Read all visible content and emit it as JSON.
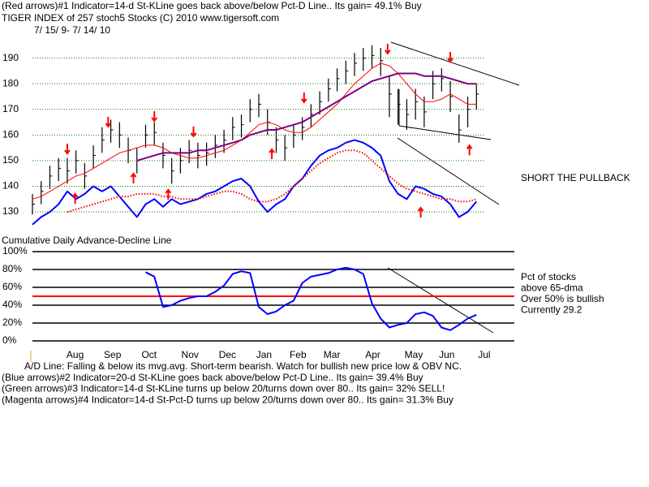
{
  "chart_data": [
    {
      "type": "ohlc",
      "title": "(Red arrows)#1 Indicator=14-d St-KLine goes back above/below Pct-D Line.. Its gain= 49.1% Buy",
      "subtitle": "TIGER INDEX of  257 stoch5 Stocks  (C) 2010  www.tigersoft.com",
      "date_range": "7/ 15/ 9- 7/ 14/ 10",
      "annotation": "SHORT THE PULLBACK",
      "xlim": [
        0,
        52
      ],
      "ylim": [
        124,
        200
      ],
      "yticks": [
        130,
        140,
        150,
        160,
        170,
        180,
        190
      ],
      "grid": true,
      "color": "#000000",
      "close": [
        133,
        138,
        144,
        147,
        146,
        150,
        144,
        152,
        158,
        162,
        160,
        154,
        150,
        160,
        161,
        152,
        146,
        150,
        154,
        152,
        153,
        156,
        158,
        163,
        164,
        170,
        172,
        165,
        158,
        155,
        160,
        163,
        168,
        173,
        178,
        182,
        185,
        188,
        190,
        191,
        189,
        176,
        172,
        168,
        173,
        169,
        180,
        182,
        175,
        162,
        170,
        176
      ],
      "high": [
        137,
        142,
        148,
        151,
        151,
        154,
        149,
        156,
        163,
        166,
        165,
        159,
        155,
        164,
        165,
        157,
        151,
        155,
        158,
        157,
        157,
        160,
        162,
        167,
        168,
        174,
        176,
        170,
        163,
        160,
        164,
        167,
        172,
        177,
        182,
        186,
        189,
        192,
        194,
        195,
        194,
        183,
        178,
        174,
        178,
        175,
        185,
        186,
        181,
        168,
        175,
        180
      ],
      "low": [
        129,
        133,
        139,
        142,
        141,
        145,
        139,
        147,
        153,
        157,
        155,
        149,
        145,
        155,
        156,
        147,
        141,
        145,
        149,
        147,
        148,
        151,
        153,
        158,
        159,
        165,
        167,
        160,
        153,
        150,
        155,
        158,
        163,
        168,
        173,
        177,
        180,
        183,
        185,
        186,
        183,
        167,
        164,
        162,
        166,
        163,
        174,
        177,
        169,
        157,
        163,
        170
      ],
      "series": [
        {
          "color": "#ff0000",
          "style": "solid",
          "values": [
            135,
            136,
            138,
            140,
            142,
            144,
            145,
            147,
            149,
            151,
            153,
            154,
            155,
            156,
            156,
            155,
            153,
            152,
            151,
            151,
            152,
            153,
            154,
            156,
            158,
            161,
            164,
            165,
            164,
            162,
            161,
            161,
            163,
            166,
            169,
            172,
            176,
            180,
            183,
            186,
            188,
            187,
            184,
            180,
            176,
            173,
            173,
            174,
            176,
            174,
            172,
            172
          ]
        },
        {
          "color": "#800080",
          "style": "thick",
          "values": [
            null,
            null,
            null,
            null,
            null,
            null,
            null,
            null,
            null,
            null,
            null,
            null,
            150,
            151,
            152,
            153,
            153,
            153,
            153,
            154,
            154,
            155,
            156,
            157,
            158,
            160,
            161,
            162,
            162,
            163,
            164,
            165,
            167,
            169,
            171,
            173,
            175,
            177,
            179,
            181,
            182,
            183,
            184,
            184,
            184,
            183,
            183,
            183,
            182,
            181,
            180,
            180
          ]
        },
        {
          "color": "#0000ff",
          "style": "thick",
          "values": [
            125,
            128,
            130,
            133,
            138,
            135,
            137,
            140,
            138,
            140,
            136,
            132,
            128,
            133,
            135,
            132,
            135,
            133,
            134,
            135,
            137,
            138,
            140,
            142,
            143,
            140,
            134,
            130,
            133,
            135,
            140,
            143,
            148,
            152,
            154,
            155,
            157,
            158,
            157,
            155,
            152,
            142,
            137,
            135,
            140,
            139,
            137,
            136,
            133,
            128,
            130,
            134
          ]
        },
        {
          "color": "#ff0000",
          "style": "dotted",
          "values": [
            null,
            null,
            null,
            null,
            130,
            131,
            132,
            133,
            134,
            135,
            136,
            136,
            137,
            137,
            137,
            136,
            136,
            135,
            135,
            135,
            136,
            137,
            138,
            138,
            137,
            135,
            134,
            134,
            135,
            137,
            140,
            143,
            146,
            149,
            151,
            153,
            154,
            154,
            153,
            150,
            147,
            144,
            141,
            139,
            138,
            137,
            136,
            135,
            135,
            134,
            134,
            135
          ]
        }
      ],
      "arrows": [
        {
          "x": 4.9,
          "y": 135.1,
          "dir": "up"
        },
        {
          "x": 11.6,
          "y": 143,
          "dir": "up"
        },
        {
          "x": 15.6,
          "y": 136.7,
          "dir": "up"
        },
        {
          "x": 27.5,
          "y": 152.5,
          "dir": "up"
        },
        {
          "x": 44.6,
          "y": 129.7,
          "dir": "up"
        },
        {
          "x": 50.2,
          "y": 154,
          "dir": "up"
        },
        {
          "x": 4.0,
          "y": 154.7,
          "dir": "down"
        },
        {
          "x": 8.7,
          "y": 165.2,
          "dir": "down"
        },
        {
          "x": 14,
          "y": 167.4,
          "dir": "down"
        },
        {
          "x": 18.5,
          "y": 161.4,
          "dir": "down"
        },
        {
          "x": 31.2,
          "y": 174.7,
          "dir": "down"
        },
        {
          "x": 40.8,
          "y": 193.7,
          "dir": "down"
        },
        {
          "x": 48,
          "y": 190.5,
          "dir": "down"
        }
      ]
    },
    {
      "type": "line",
      "title": "Cumulative Daily Advance-Decline Line",
      "annotations": [
        "Pct of stocks",
        "above 65-dma",
        "Over 50% is bullish",
        "Currently  29.2"
      ],
      "notes": [
        " A/D Line: Falling & below its mvg.avg. Short-term bearish. Watch for bullish new price low & OBV NC.",
        "(Blue arrows)#2 Indicator=20-d St-KLine goes back above/below Pct-D Line.. Its gain= 39.4% Buy",
        "(Green arrows)#3 Indicator=14-d St-KLine turns up below 20/turns down over 80.. Its gain= 32% SELL!",
        "(Magenta arrows)#4 Indicator=14-d St-Pct-D turns up below 20/turns down over 80.. Its gain= 31.3% Buy"
      ],
      "xlim": [
        0,
        52
      ],
      "xticks": [
        {
          "value": 4.9,
          "label": "Aug"
        },
        {
          "value": 9.2,
          "label": "Sep"
        },
        {
          "value": 13.4,
          "label": "Oct"
        },
        {
          "value": 18.1,
          "label": "Nov"
        },
        {
          "value": 22.4,
          "label": "Dec"
        },
        {
          "value": 26.6,
          "label": "Jan"
        },
        {
          "value": 30.5,
          "label": "Feb"
        },
        {
          "value": 34.4,
          "label": "Mar"
        },
        {
          "value": 39.1,
          "label": "Apr"
        },
        {
          "value": 43.8,
          "label": "May"
        },
        {
          "value": 47.6,
          "label": "Jun"
        },
        {
          "value": 51.9,
          "label": "Jul"
        }
      ],
      "ylim": [
        0,
        100
      ],
      "yticks": [
        {
          "value": 0,
          "label": "0%"
        },
        {
          "value": 20,
          "label": "20%"
        },
        {
          "value": 40,
          "label": "40%"
        },
        {
          "value": 60,
          "label": "60%"
        },
        {
          "value": 80,
          "label": "80%"
        },
        {
          "value": 100,
          "label": "100%"
        }
      ],
      "grid": true,
      "reference_line": {
        "value": 50,
        "color": "#ff0000"
      },
      "series": [
        {
          "color": "#0000ff",
          "values": [
            null,
            null,
            null,
            null,
            null,
            null,
            null,
            null,
            null,
            null,
            null,
            null,
            null,
            77,
            72,
            38,
            40,
            45,
            48,
            50,
            50,
            55,
            62,
            75,
            78,
            76,
            38,
            30,
            33,
            40,
            45,
            65,
            72,
            74,
            76,
            80,
            82,
            80,
            75,
            42,
            25,
            15,
            18,
            20,
            30,
            32,
            28,
            15,
            12,
            18,
            25,
            29.2
          ]
        }
      ]
    }
  ]
}
